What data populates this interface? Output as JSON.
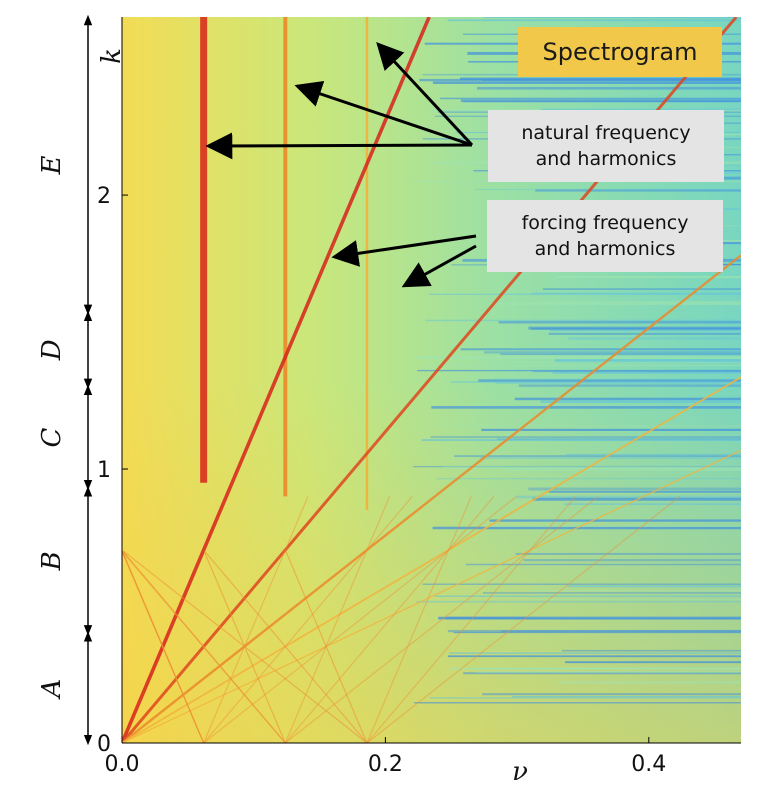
{
  "chart_data": {
    "type": "heatmap",
    "title": "Spectrogram",
    "xlabel": "ν",
    "ylabel": "k",
    "xlim": [
      0.0,
      0.47
    ],
    "ylim": [
      0,
      2.65
    ],
    "x_ticks": [
      "0.0",
      "0.2",
      "0.4"
    ],
    "x_tick_values": [
      0.0,
      0.2,
      0.4
    ],
    "y_ticks": [
      "0",
      "1",
      "2"
    ],
    "y_tick_values": [
      0,
      1,
      2
    ],
    "colormap": [
      "#2a5be0",
      "#4fb8e8",
      "#7fe0c8",
      "#dcea6a",
      "#f4d24a",
      "#f08a2a",
      "#d8231c"
    ],
    "background_color": "#8fd9a8",
    "natural_frequency": 0.062,
    "natural_harmonics": [
      0.062,
      0.124,
      0.186
    ],
    "forcing_slopes": [
      0.088,
      0.176,
      0.264,
      0.352,
      0.44
    ],
    "regions": [
      {
        "label": "A",
        "k_start": 0.0,
        "k_end": 0.4
      },
      {
        "label": "B",
        "k_start": 0.4,
        "k_end": 0.93
      },
      {
        "label": "C",
        "k_start": 0.93,
        "k_end": 1.3
      },
      {
        "label": "D",
        "k_start": 1.3,
        "k_end": 1.57
      },
      {
        "label": "E",
        "k_start": 1.57,
        "k_end": 2.65
      }
    ],
    "annotations": [
      {
        "lines": [
          "natural frequency",
          "and harmonics"
        ]
      },
      {
        "lines": [
          "forcing frequency",
          "and harmonics"
        ]
      }
    ]
  }
}
